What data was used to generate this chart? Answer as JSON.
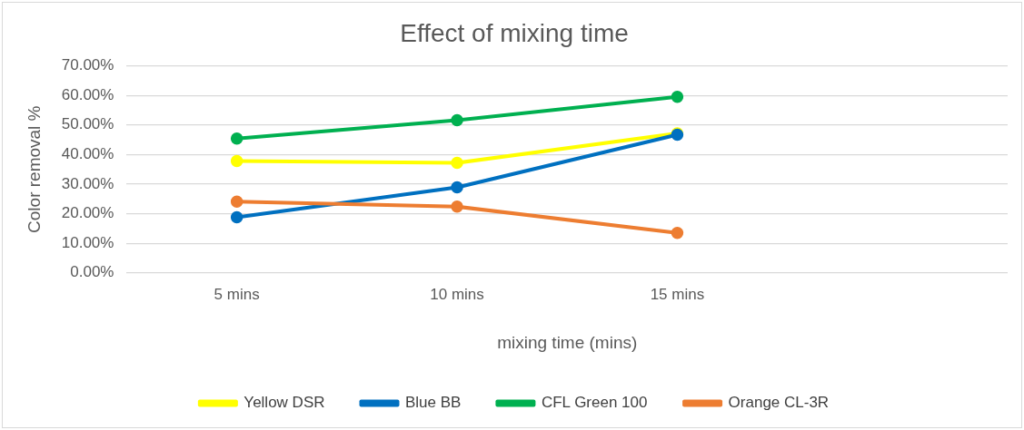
{
  "chart_data": {
    "type": "line",
    "title": "Effect of mixing time",
    "xlabel": "mixing time (mins)",
    "ylabel": "Color removal %",
    "categories": [
      "5 mins",
      "10 mins",
      "15 mins",
      null
    ],
    "series": [
      {
        "name": "Yellow DSR",
        "color": "#ffff00",
        "values": [
          37.8,
          37.2,
          47.2,
          null
        ]
      },
      {
        "name": "Blue BB",
        "color": "#0070c0",
        "values": [
          18.8,
          28.9,
          46.7,
          null
        ]
      },
      {
        "name": "CFL Green 100",
        "color": "#00b050",
        "values": [
          45.4,
          51.6,
          59.5,
          null
        ]
      },
      {
        "name": "Orange CL-3R",
        "color": "#ed7d31",
        "values": [
          24.1,
          22.4,
          13.5,
          null
        ]
      }
    ],
    "ylim": [
      0,
      70
    ],
    "yticks": [
      {
        "value": 0,
        "label": "0.00%"
      },
      {
        "value": 10,
        "label": "10.00%"
      },
      {
        "value": 20,
        "label": "20.00%"
      },
      {
        "value": 30,
        "label": "30.00%"
      },
      {
        "value": 40,
        "label": "40.00%"
      },
      {
        "value": 50,
        "label": "50.00%"
      },
      {
        "value": 60,
        "label": "60.00%"
      },
      {
        "value": 70,
        "label": "70.00%"
      }
    ],
    "grid": "y",
    "legend": "bottom",
    "marker": "circle",
    "line_style": "solid"
  }
}
